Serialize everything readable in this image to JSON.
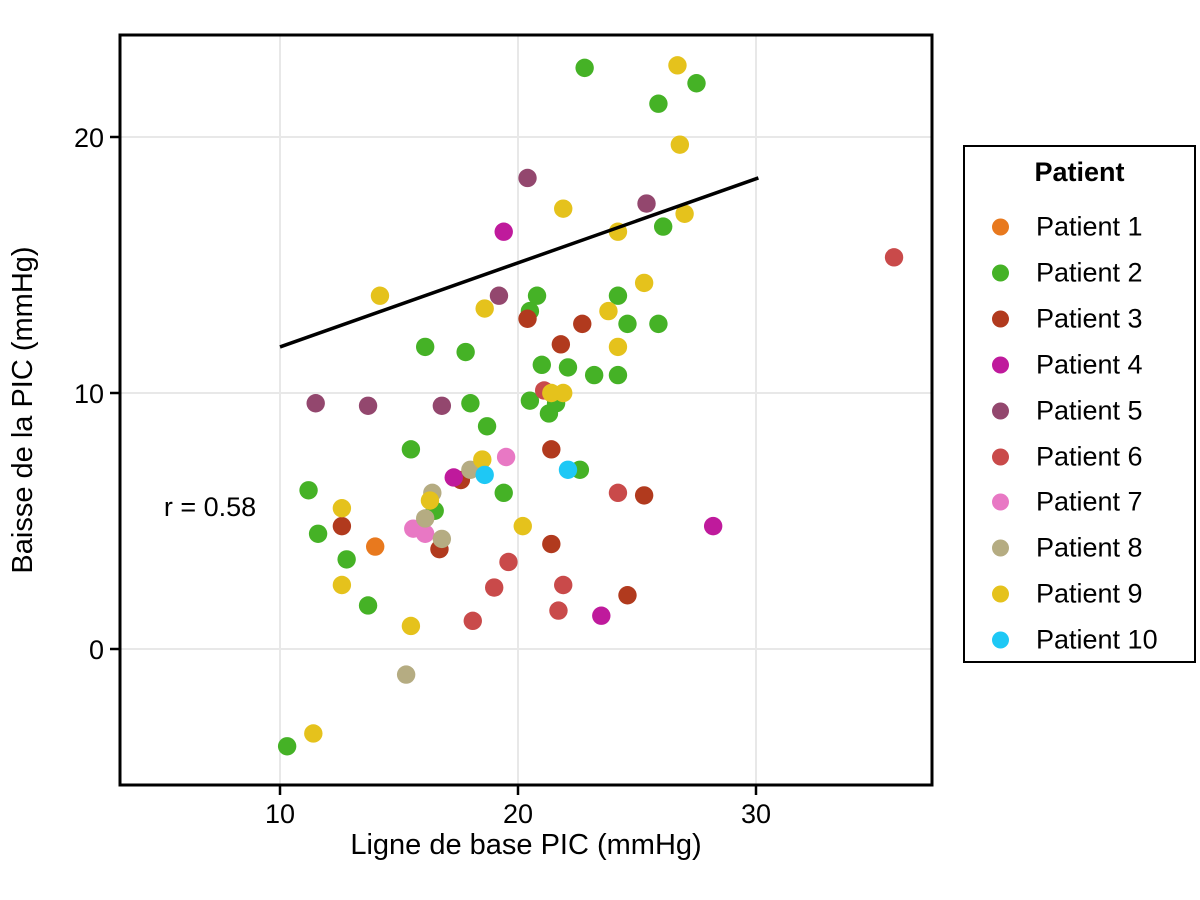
{
  "figure": {
    "background": "#ffffff",
    "frame_color": "#000000"
  },
  "chart_data": {
    "type": "scatter",
    "title": "",
    "xlabel": "Ligne de base PIC (mmHg)",
    "ylabel": "Baisse de la PIC (mmHg)",
    "xticks": [
      "10",
      "20",
      "30"
    ],
    "xtick_values": [
      10,
      20,
      30
    ],
    "yticks": [
      "0",
      "10",
      "20"
    ],
    "ytick_values": [
      0,
      10,
      20
    ],
    "xlim": [
      3.3,
      37.5
    ],
    "ylim": [
      -5.3,
      24.0
    ],
    "grid": true,
    "gridline_color": "#e8e8e8",
    "annotation": {
      "text": "r = 0.58",
      "x": 7.1,
      "y": 5.6
    },
    "trend_line": {
      "x1": 10.0,
      "y1": 11.8,
      "x2": 30.1,
      "y2": 18.4,
      "color": "#000000"
    },
    "legend": {
      "title": "Patient",
      "position": "right"
    },
    "series": [
      {
        "name": "Patient 1",
        "color": "#e8791e",
        "points": [
          [
            14.0,
            4.0
          ]
        ]
      },
      {
        "name": "Patient 2",
        "color": "#45b226",
        "points": [
          [
            22.8,
            22.7
          ],
          [
            27.5,
            22.1
          ],
          [
            25.9,
            21.3
          ],
          [
            26.1,
            16.5
          ],
          [
            24.2,
            13.8
          ],
          [
            20.8,
            13.8
          ],
          [
            20.5,
            13.2
          ],
          [
            25.9,
            12.7
          ],
          [
            24.6,
            12.7
          ],
          [
            16.1,
            11.8
          ],
          [
            17.8,
            11.6
          ],
          [
            21.0,
            11.1
          ],
          [
            22.1,
            11.0
          ],
          [
            23.2,
            10.7
          ],
          [
            24.2,
            10.7
          ],
          [
            20.5,
            9.7
          ],
          [
            21.6,
            9.6
          ],
          [
            18.0,
            9.6
          ],
          [
            21.3,
            9.2
          ],
          [
            18.7,
            8.7
          ],
          [
            15.5,
            7.8
          ],
          [
            22.6,
            7.0
          ],
          [
            11.2,
            6.2
          ],
          [
            19.4,
            6.1
          ],
          [
            16.5,
            5.4
          ],
          [
            11.6,
            4.5
          ],
          [
            12.8,
            3.5
          ],
          [
            13.7,
            1.7
          ],
          [
            10.3,
            -3.8
          ]
        ]
      },
      {
        "name": "Patient 3",
        "color": "#b13a1e",
        "points": [
          [
            20.4,
            12.9
          ],
          [
            22.7,
            12.7
          ],
          [
            21.8,
            11.9
          ],
          [
            21.4,
            7.8
          ],
          [
            17.6,
            6.6
          ],
          [
            25.3,
            6.0
          ],
          [
            12.6,
            4.8
          ],
          [
            21.4,
            4.1
          ],
          [
            16.7,
            3.9
          ],
          [
            24.6,
            2.1
          ]
        ]
      },
      {
        "name": "Patient 4",
        "color": "#bf1a9c",
        "points": [
          [
            19.4,
            16.3
          ],
          [
            17.3,
            6.7
          ],
          [
            28.2,
            4.8
          ],
          [
            23.5,
            1.3
          ]
        ]
      },
      {
        "name": "Patient 5",
        "color": "#93476e",
        "points": [
          [
            20.4,
            18.4
          ],
          [
            25.4,
            17.4
          ],
          [
            19.2,
            13.8
          ],
          [
            11.5,
            9.6
          ],
          [
            13.7,
            9.5
          ],
          [
            16.8,
            9.5
          ]
        ]
      },
      {
        "name": "Patient 6",
        "color": "#c94a4a",
        "points": [
          [
            35.8,
            15.3
          ],
          [
            21.1,
            10.1
          ],
          [
            24.2,
            6.1
          ],
          [
            19.6,
            3.4
          ],
          [
            21.9,
            2.5
          ],
          [
            19.0,
            2.4
          ],
          [
            21.7,
            1.5
          ],
          [
            18.1,
            1.1
          ]
        ]
      },
      {
        "name": "Patient 7",
        "color": "#e878c4",
        "points": [
          [
            19.5,
            7.5
          ],
          [
            15.6,
            4.7
          ],
          [
            16.1,
            4.5
          ]
        ]
      },
      {
        "name": "Patient 8",
        "color": "#b5ac82",
        "points": [
          [
            18.0,
            7.0
          ],
          [
            16.4,
            6.1
          ],
          [
            16.1,
            5.1
          ],
          [
            16.8,
            4.3
          ],
          [
            15.3,
            -1.0
          ]
        ]
      },
      {
        "name": "Patient 9",
        "color": "#e5c21c",
        "points": [
          [
            26.7,
            22.8
          ],
          [
            26.8,
            19.7
          ],
          [
            27.0,
            17.0
          ],
          [
            21.9,
            17.2
          ],
          [
            24.2,
            16.3
          ],
          [
            25.3,
            14.3
          ],
          [
            14.2,
            13.8
          ],
          [
            18.6,
            13.3
          ],
          [
            23.8,
            13.2
          ],
          [
            24.2,
            11.8
          ],
          [
            21.4,
            10.0
          ],
          [
            21.9,
            10.0
          ],
          [
            18.5,
            7.4
          ],
          [
            16.3,
            5.8
          ],
          [
            12.6,
            5.5
          ],
          [
            20.2,
            4.8
          ],
          [
            12.6,
            2.5
          ],
          [
            15.5,
            0.9
          ],
          [
            11.4,
            -3.3
          ]
        ]
      },
      {
        "name": "Patient 10",
        "color": "#1ec8f5",
        "points": [
          [
            22.1,
            7.0
          ],
          [
            18.6,
            6.8
          ]
        ]
      }
    ]
  }
}
